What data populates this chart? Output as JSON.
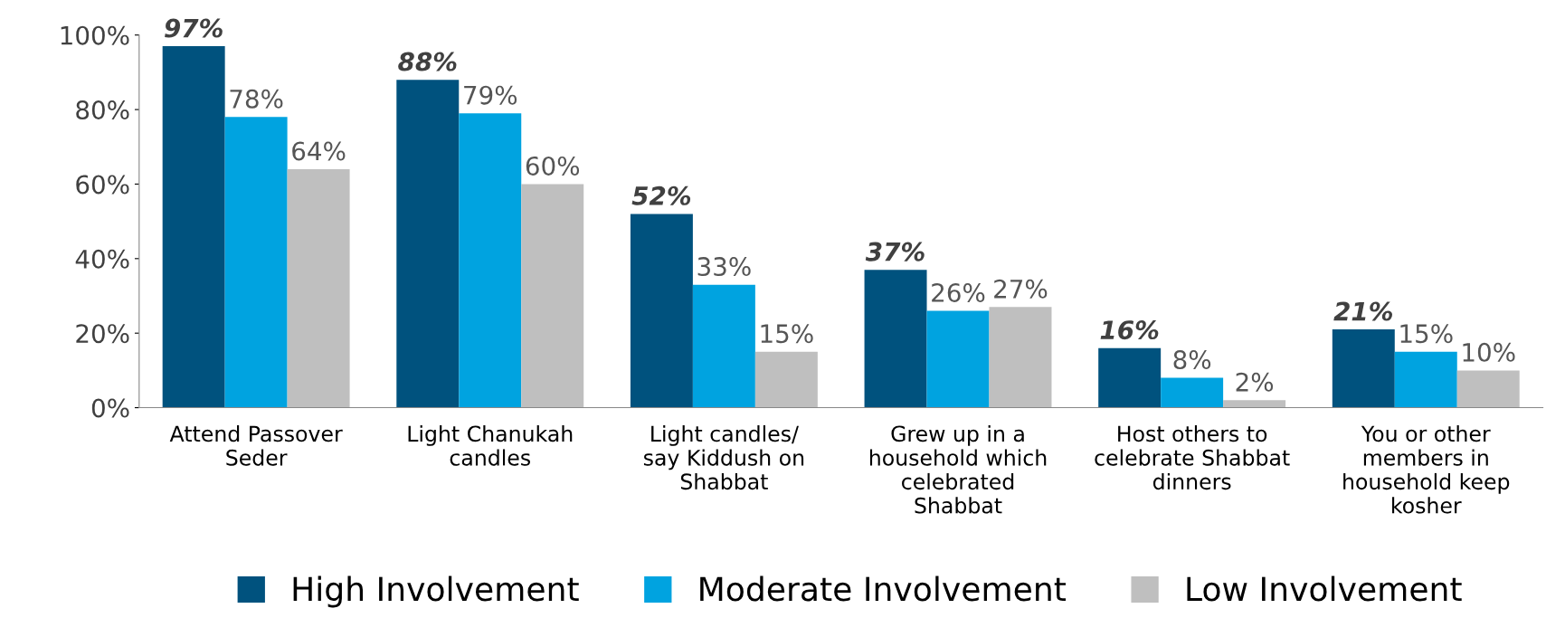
{
  "chart_data": {
    "type": "bar",
    "categories": [
      "Attend Passover\nSeder",
      "Light Chanukah\ncandles",
      "Light candles/\nsay Kiddush on\nShabbat",
      "Grew up in a\nhousehold which\ncelebrated\nShabbat",
      "Host others to\ncelebrate Shabbat\ndinners",
      "You or other\nmembers in\nhousehold keep\nkosher"
    ],
    "series": [
      {
        "name": "High Involvement",
        "color": "#00527e",
        "values": [
          97,
          88,
          52,
          37,
          16,
          21
        ],
        "value_labels": [
          "97%",
          "88%",
          "52%",
          "37%",
          "16%",
          "21%"
        ]
      },
      {
        "name": "Moderate Involvement",
        "color": "#00a3e0",
        "values": [
          78,
          79,
          33,
          26,
          8,
          15
        ],
        "value_labels": [
          "78%",
          "79%",
          "33%",
          "26%",
          "8%",
          "15%"
        ]
      },
      {
        "name": "Low Involvement",
        "color": "#bfbfbf",
        "values": [
          64,
          60,
          15,
          27,
          2,
          10
        ],
        "value_labels": [
          "64%",
          "60%",
          "15%",
          "27%",
          "2%",
          "10%"
        ]
      }
    ],
    "ylim": [
      0,
      100
    ],
    "yticks": [
      {
        "value": 0,
        "label": "0%"
      },
      {
        "value": 20,
        "label": "20%"
      },
      {
        "value": 40,
        "label": "40%"
      },
      {
        "value": 60,
        "label": "60%"
      },
      {
        "value": 80,
        "label": "80%"
      },
      {
        "value": 100,
        "label": "100%"
      }
    ],
    "grid": false,
    "legend": "bottom"
  }
}
